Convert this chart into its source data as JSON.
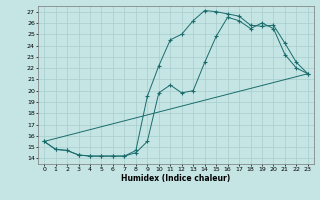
{
  "xlabel": "Humidex (Indice chaleur)",
  "xlim": [
    -0.5,
    23.5
  ],
  "ylim": [
    13.5,
    27.5
  ],
  "xticks": [
    0,
    1,
    2,
    3,
    4,
    5,
    6,
    7,
    8,
    9,
    10,
    11,
    12,
    13,
    14,
    15,
    16,
    17,
    18,
    19,
    20,
    21,
    22,
    23
  ],
  "yticks": [
    14,
    15,
    16,
    17,
    18,
    19,
    20,
    21,
    22,
    23,
    24,
    25,
    26,
    27
  ],
  "bg_color": "#c5e5e5",
  "grid_color": "#a8cccc",
  "line_color": "#1a6b6b",
  "line1_x": [
    0,
    1,
    2,
    3,
    4,
    5,
    6,
    7,
    8,
    9,
    10,
    11,
    12,
    13,
    14,
    15,
    16,
    17,
    18,
    19,
    20,
    21,
    22,
    23
  ],
  "line1_y": [
    15.5,
    14.8,
    14.7,
    14.3,
    14.2,
    14.2,
    14.2,
    14.2,
    14.7,
    19.5,
    22.2,
    24.5,
    25.0,
    26.2,
    27.1,
    27.0,
    26.8,
    26.6,
    25.8,
    25.7,
    25.8,
    24.2,
    22.5,
    21.5
  ],
  "line2_x": [
    0,
    1,
    2,
    3,
    4,
    5,
    6,
    7,
    8,
    9,
    10,
    11,
    12,
    13,
    14,
    15,
    16,
    17,
    18,
    19,
    20,
    21,
    22,
    23
  ],
  "line2_y": [
    15.5,
    14.8,
    14.7,
    14.3,
    14.2,
    14.2,
    14.2,
    14.2,
    14.5,
    15.5,
    19.8,
    20.5,
    19.8,
    20.0,
    22.5,
    24.8,
    26.5,
    26.2,
    25.5,
    26.0,
    25.5,
    23.2,
    22.0,
    21.5
  ],
  "line3_x": [
    0,
    23
  ],
  "line3_y": [
    15.5,
    21.5
  ]
}
